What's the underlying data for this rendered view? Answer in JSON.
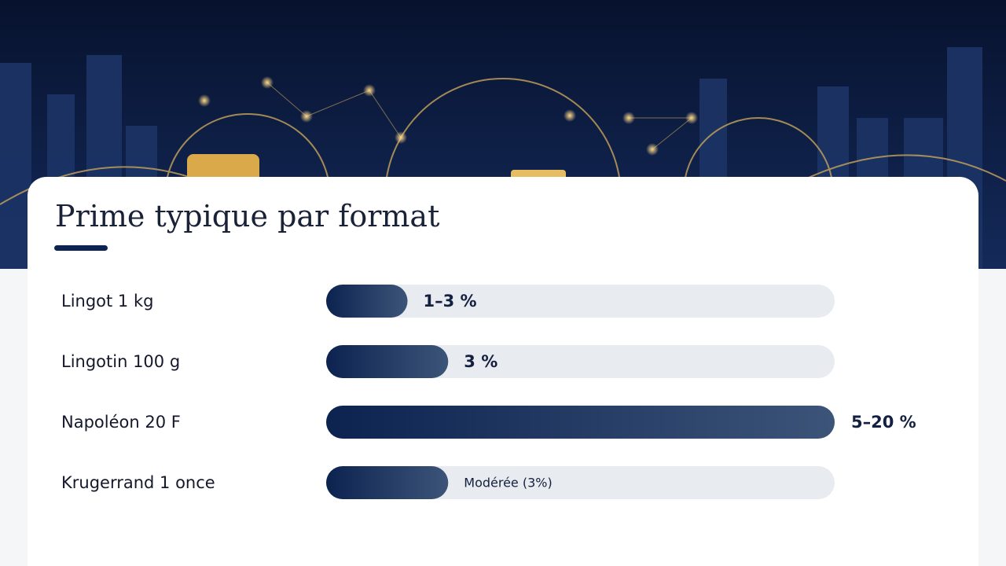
{
  "chart_data": {
    "type": "hbar",
    "title": "Prime typique par format",
    "categories": [
      "Lingot 1 kg",
      "Lingotin 100 g",
      "Napoléon 20 F",
      "Krugerrand 1 once"
    ],
    "values": [
      16,
      24,
      100,
      24
    ],
    "premium_labels": [
      "1–3 %",
      "3 %",
      "5–20 %",
      "Modérée (3%)"
    ],
    "xlim": [
      0,
      100
    ],
    "color": "#0c2350",
    "color_end": "#3d5479",
    "track_color": "#e8ebf0"
  }
}
